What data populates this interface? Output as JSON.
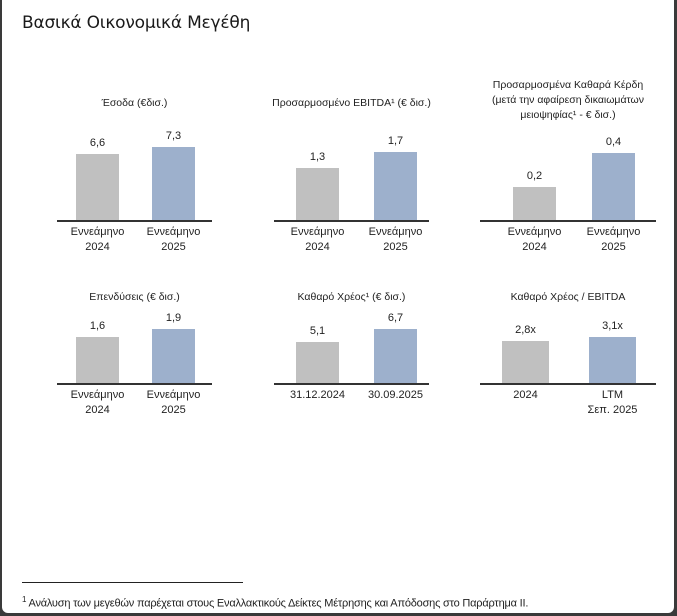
{
  "title": "Βασικά Οικονομικά Μεγέθη",
  "colors": {
    "bar_2024": "#c0c0c0",
    "bar_2025": "#9db0cc"
  },
  "chart_data": [
    {
      "type": "bar",
      "title": "Έσοδα (€δισ.)",
      "categories": [
        "Εννεάμηνο\n2024",
        "Εννεάμηνο\n2025"
      ],
      "values": [
        6.6,
        7.3
      ],
      "labels": [
        "6,6",
        "7,3"
      ],
      "ylim": [
        0,
        10
      ]
    },
    {
      "type": "bar",
      "title": "Προσαρμοσμένο EBITDA¹ (€ δισ.)",
      "categories": [
        "Εννεάμηνο\n2024",
        "Εννεάμηνο\n2025"
      ],
      "values": [
        1.3,
        1.7
      ],
      "labels": [
        "1,3",
        "1,7"
      ],
      "ylim": [
        0,
        2.5
      ]
    },
    {
      "type": "bar",
      "title": "Προσαρμοσμένα Καθαρά Κέρδη\n(μετά την αφαίρεση δικαιωμάτων\nμειοψηφίας¹ - € δισ.)",
      "categories": [
        "Εννεάμηνο\n2024",
        "Εννεάμηνο\n2025"
      ],
      "values": [
        0.2,
        0.4
      ],
      "labels": [
        "0,2",
        "0,4"
      ],
      "ylim": [
        0,
        0.6
      ]
    },
    {
      "type": "bar",
      "title": "Επενδύσεις (€ δισ.)",
      "categories": [
        "Εννεάμηνο\n2024",
        "Εννεάμηνο\n2025"
      ],
      "values": [
        1.6,
        1.9
      ],
      "labels": [
        "1,6",
        "1,9"
      ],
      "ylim": [
        0,
        3.5
      ]
    },
    {
      "type": "bar",
      "title": "Καθαρό Χρέος¹ (€ δισ.)",
      "categories": [
        "31.12.2024",
        "30.09.2025"
      ],
      "values": [
        5.1,
        6.7
      ],
      "labels": [
        "5,1",
        "6,7"
      ],
      "ylim": [
        0,
        12.5
      ]
    },
    {
      "type": "bar",
      "title": "Καθαρό Χρέος / EBITDA",
      "categories": [
        "2024",
        "LTM\nΣεπ. 2025"
      ],
      "values": [
        2.8,
        3.1
      ],
      "labels": [
        "2,8x",
        "3,1x"
      ],
      "ylim": [
        0,
        6.7
      ]
    }
  ],
  "footnote": {
    "marker": "1",
    "text": "Ανάλυση των μεγεθών παρέχεται στους Εναλλακτικούς Δείκτες Μέτρησης και Απόδοσης στο Παράρτημα ΙΙ."
  }
}
